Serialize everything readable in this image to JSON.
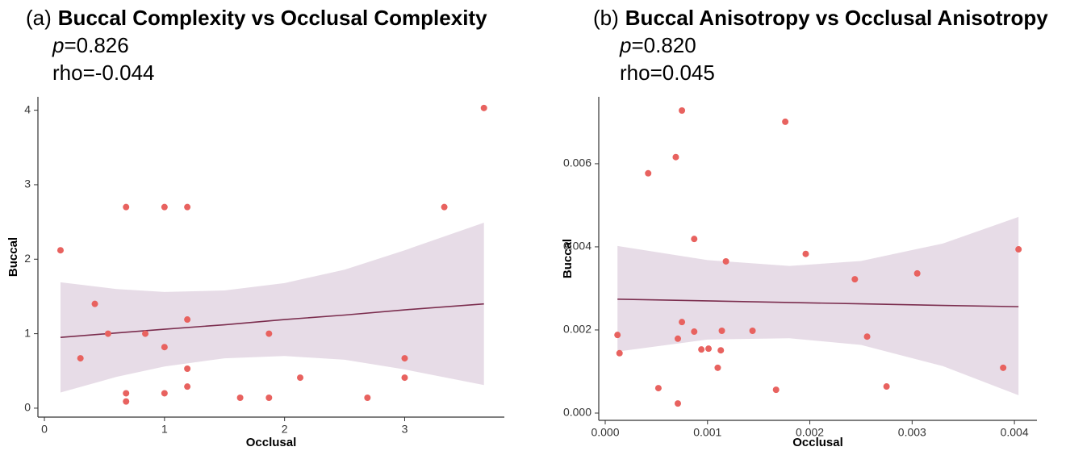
{
  "chart_data": [
    {
      "type": "scatter",
      "panel_label": "(a)",
      "title": "Buccal Complexity vs Occlusal Complexity",
      "p_symbol": "p",
      "p_text": "=0.826",
      "rho_text": "rho=-0.044",
      "x_label": "Occlusal",
      "y_label": "Buccal",
      "color": "#e8625f",
      "fit_color": "#7b2d4e",
      "band_color": "#e3d6e3",
      "x": [
        0.134,
        0.3,
        0.42,
        0.53,
        0.68,
        0.68,
        0.68,
        0.84,
        1.0,
        1.0,
        1.0,
        1.19,
        1.19,
        1.19,
        1.19,
        1.63,
        1.87,
        1.87,
        2.13,
        2.69,
        3.0,
        3.0,
        3.33,
        3.66
      ],
      "values": [
        2.12,
        0.67,
        1.4,
        1.0,
        2.7,
        0.2,
        0.09,
        1.0,
        2.7,
        0.82,
        0.2,
        2.7,
        1.19,
        0.53,
        0.29,
        0.14,
        1.0,
        0.14,
        0.41,
        0.14,
        0.67,
        0.41,
        2.7,
        4.03
      ],
      "fit": {
        "x": [
          0.134,
          0.6,
          1.0,
          1.5,
          2.0,
          2.5,
          3.0,
          3.66
        ],
        "y": [
          0.95,
          1.01,
          1.06,
          1.12,
          1.19,
          1.25,
          1.32,
          1.4
        ],
        "upper": [
          1.69,
          1.6,
          1.56,
          1.58,
          1.68,
          1.86,
          2.12,
          2.49
        ],
        "lower": [
          0.21,
          0.42,
          0.56,
          0.67,
          0.7,
          0.65,
          0.52,
          0.31
        ]
      },
      "xlim": [
        -0.054,
        3.83
      ],
      "ylim": [
        -0.12,
        4.18
      ],
      "xticks": [
        0,
        1,
        2,
        3
      ],
      "yticks": [
        0,
        1,
        2,
        3,
        4
      ]
    },
    {
      "type": "scatter",
      "panel_label": "(b)",
      "title": "Buccal Anisotropy vs Occlusal Anisotropy",
      "p_symbol": "p",
      "p_text": "=0.820",
      "rho_text": "rho=0.045",
      "x_label": "Occlusal",
      "y_label": "Buccal",
      "color": "#e8625f",
      "fit_color": "#7b2d4e",
      "band_color": "#e3d6e3",
      "x": [
        0.00012,
        0.00014,
        0.00042,
        0.00052,
        0.00069,
        0.00071,
        0.00071,
        0.00075,
        0.00075,
        0.00087,
        0.00087,
        0.00094,
        0.00101,
        0.0011,
        0.00113,
        0.00114,
        0.00118,
        0.00144,
        0.00167,
        0.00176,
        0.00196,
        0.00244,
        0.00256,
        0.00275,
        0.00305,
        0.00389,
        0.00404
      ],
      "values": [
        0.00188,
        0.00144,
        0.00577,
        0.0006,
        0.00616,
        0.00179,
        0.00023,
        0.00728,
        0.00219,
        0.00419,
        0.00196,
        0.00153,
        0.00155,
        0.00109,
        0.00151,
        0.00198,
        0.00365,
        0.00198,
        0.00056,
        0.00701,
        0.00383,
        0.00322,
        0.00184,
        0.00064,
        0.00336,
        0.00109,
        0.00394
      ],
      "fit": {
        "x": [
          0.00012,
          0.001,
          0.0018,
          0.0025,
          0.0033,
          0.00404
        ],
        "y": [
          0.00274,
          0.0027,
          0.00266,
          0.00263,
          0.00259,
          0.00256
        ],
        "upper": [
          0.00402,
          0.00368,
          0.00354,
          0.00366,
          0.00408,
          0.00472
        ],
        "lower": [
          0.00148,
          0.00177,
          0.0018,
          0.00164,
          0.00113,
          0.00043
        ]
      },
      "xlim": [
        -6.3e-05,
        0.00422
      ],
      "ylim": [
        -0.000175,
        0.00761
      ],
      "xticks": [
        {
          "value": 0,
          "label": "0.000"
        },
        {
          "value": 0.001,
          "label": "0.001"
        },
        {
          "value": 0.002,
          "label": "0.002"
        },
        {
          "value": 0.003,
          "label": "0.003"
        },
        {
          "value": 0.004,
          "label": "0.004"
        }
      ],
      "yticks": [
        {
          "value": 0,
          "label": "0.000"
        },
        {
          "value": 0.002,
          "label": "0.002"
        },
        {
          "value": 0.004,
          "label": "0.004"
        },
        {
          "value": 0.006,
          "label": "0.006"
        }
      ]
    }
  ]
}
